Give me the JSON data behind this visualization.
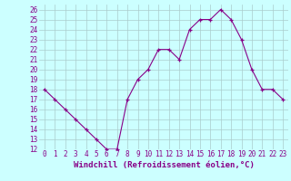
{
  "x": [
    0,
    1,
    2,
    3,
    4,
    5,
    6,
    7,
    8,
    9,
    10,
    11,
    12,
    13,
    14,
    15,
    16,
    17,
    18,
    19,
    20,
    21,
    22,
    23
  ],
  "y": [
    18,
    17,
    16,
    15,
    14,
    13,
    12,
    12,
    17,
    19,
    20,
    22,
    22,
    21,
    24,
    25,
    25,
    26,
    25,
    23,
    20,
    18,
    18,
    17
  ],
  "xlabel": "Windchill (Refroidissement éolien,°C)",
  "ylim": [
    12,
    26.5
  ],
  "xlim": [
    -0.5,
    23.5
  ],
  "yticks": [
    12,
    13,
    14,
    15,
    16,
    17,
    18,
    19,
    20,
    21,
    22,
    23,
    24,
    25,
    26
  ],
  "xticks": [
    0,
    1,
    2,
    3,
    4,
    5,
    6,
    7,
    8,
    9,
    10,
    11,
    12,
    13,
    14,
    15,
    16,
    17,
    18,
    19,
    20,
    21,
    22,
    23
  ],
  "line_color": "#880088",
  "bg_color": "#ccffff",
  "grid_color": "#aacccc",
  "label_fontsize": 6.5,
  "tick_fontsize": 5.5
}
